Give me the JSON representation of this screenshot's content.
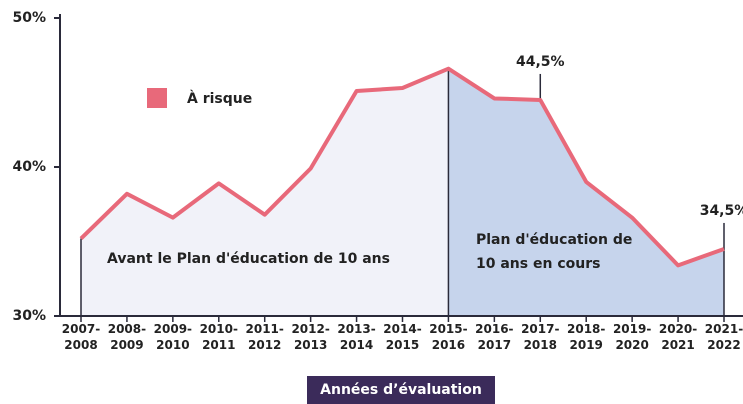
{
  "chart_data": {
    "type": "line",
    "x_label": "Années d’évaluation",
    "categories": [
      "2007-2008",
      "2008-2009",
      "2009-2010",
      "2010-2011",
      "2011-2012",
      "2012-2013",
      "2013-2014",
      "2014-2015",
      "2015-2016",
      "2016-2017",
      "2017-2018",
      "2018-2019",
      "2019-2020",
      "2020-2021",
      "2021-2022"
    ],
    "series": [
      {
        "name": "À risque",
        "color": "#e8697a",
        "values": [
          35.2,
          38.2,
          36.6,
          38.9,
          36.8,
          39.9,
          45.1,
          45.3,
          46.6,
          44.6,
          44.5,
          39.0,
          36.6,
          33.4,
          34.5
        ],
        "value_labels": [
          null,
          null,
          null,
          null,
          null,
          null,
          null,
          null,
          null,
          null,
          "44,5%",
          null,
          null,
          null,
          "34,5%"
        ]
      }
    ],
    "ylim": [
      30,
      50
    ],
    "yticks": [
      {
        "value": 30,
        "label": "30%"
      },
      {
        "value": 40,
        "label": "40%"
      },
      {
        "value": 50,
        "label": "50%"
      }
    ],
    "annotations": [
      "Avant le Plan d'éducation de 10 ans",
      "Plan d'éducation de 10 ans en cours"
    ]
  }
}
